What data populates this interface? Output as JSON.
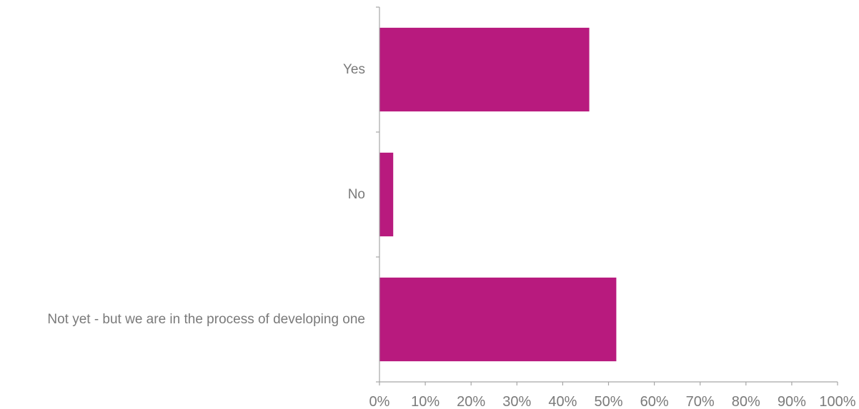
{
  "chart_data": {
    "type": "bar",
    "orientation": "horizontal",
    "categories": [
      "Yes",
      "No",
      "Not yet - but we are in the process of developing one"
    ],
    "values": [
      45.8,
      3.0,
      51.7
    ],
    "value_unit": "%",
    "xlim": [
      0,
      100
    ],
    "x_tick_labels": [
      "0%",
      "10%",
      "20%",
      "30%",
      "40%",
      "50%",
      "60%",
      "70%",
      "80%",
      "90%",
      "100%"
    ],
    "title": "",
    "xlabel": "",
    "ylabel": "",
    "grid": false,
    "legend": "none",
    "bar_color": "#B81A7E",
    "axis_text_color": "#7a7a7a",
    "axis_line_color": "#a6a6a6"
  }
}
